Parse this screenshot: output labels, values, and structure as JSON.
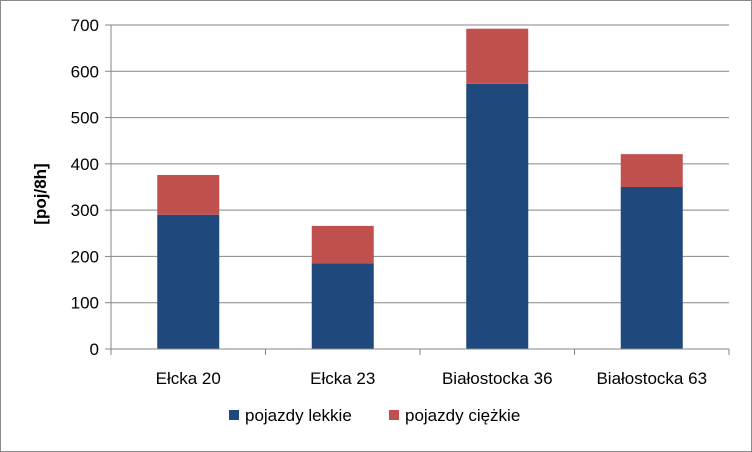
{
  "chart_data": {
    "type": "bar",
    "stacked": true,
    "title": "",
    "xlabel": "",
    "ylabel": "[poj/8h]",
    "ylim": [
      0,
      700
    ],
    "yticks": [
      0,
      100,
      200,
      300,
      400,
      500,
      600,
      700
    ],
    "grid": true,
    "legend_position": "bottom",
    "categories": [
      "Ełcka 20",
      "Ełcka 23",
      "Białostocka 36",
      "Białostocka 63"
    ],
    "series": [
      {
        "name": "pojazdy lekkie",
        "color": "#1f497d",
        "values": [
          290,
          185,
          573,
          350
        ]
      },
      {
        "name": "pojazdy ciężkie",
        "color": "#c0504d",
        "values": [
          86,
          81,
          119,
          71
        ]
      }
    ]
  }
}
